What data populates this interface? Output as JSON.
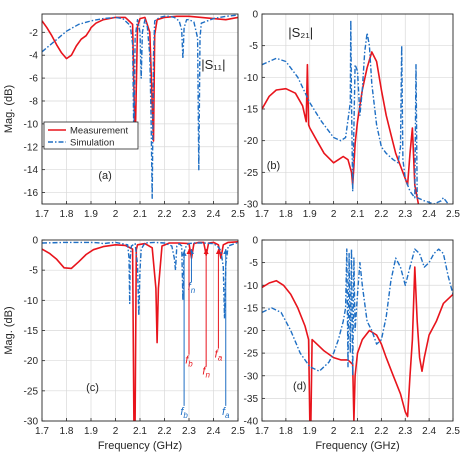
{
  "colors": {
    "measurement": "#e8141c",
    "simulation": "#1f6fc4",
    "grid": "#d9d9d9",
    "axis": "#262626",
    "background": "#ffffff"
  },
  "figure": {
    "shared_xlabel": "Frequency (GHz)"
  },
  "chart_data": [
    {
      "id": "a",
      "type": "line",
      "panel_label": "(a)",
      "annotation": "|S₁₁|",
      "ylabel": "Mag. (dB)",
      "xlabel": "",
      "xlim": [
        1.7,
        2.5
      ],
      "ylim": [
        -17,
        -0.4
      ],
      "xticks": [
        1.7,
        1.8,
        1.9,
        2.0,
        2.1,
        2.2,
        2.3,
        2.4,
        2.5
      ],
      "yticks": [
        -16,
        -14,
        -12,
        -10,
        -8,
        -6,
        -4,
        -2
      ],
      "grid": true,
      "legend": {
        "placement": "bottom-left"
      },
      "series": [
        {
          "name": "Measurement",
          "style": "solid",
          "x": [
            1.7,
            1.72,
            1.74,
            1.76,
            1.78,
            1.8,
            1.82,
            1.84,
            1.86,
            1.88,
            1.895,
            1.9,
            1.92,
            1.95,
            2.0,
            2.04,
            2.07,
            2.08,
            2.09,
            2.1,
            2.12,
            2.14,
            2.155,
            2.16,
            2.17,
            2.2,
            2.25,
            2.3,
            2.35,
            2.4,
            2.45,
            2.5
          ],
          "y": [
            -1.0,
            -1.6,
            -2.3,
            -3.1,
            -3.8,
            -4.3,
            -4.0,
            -3.2,
            -2.6,
            -2.3,
            -1.8,
            -1.6,
            -1.2,
            -0.9,
            -0.7,
            -0.7,
            -1.3,
            -12.0,
            -1.5,
            -0.8,
            -0.7,
            -2.0,
            -11.5,
            -2.2,
            -0.9,
            -0.7,
            -0.6,
            -0.6,
            -0.7,
            -0.8,
            -0.9,
            -0.7
          ]
        },
        {
          "name": "Simulation",
          "style": "dashdot",
          "x": [
            1.7,
            1.75,
            1.8,
            1.85,
            1.9,
            1.95,
            2.0,
            2.03,
            2.06,
            2.07,
            2.075,
            2.08,
            2.09,
            2.1,
            2.105,
            2.11,
            2.12,
            2.13,
            2.14,
            2.145,
            2.15,
            2.155,
            2.16,
            2.18,
            2.2,
            2.22,
            2.24,
            2.26,
            2.27,
            2.275,
            2.28,
            2.29,
            2.3,
            2.32,
            2.335,
            2.34,
            2.345,
            2.35,
            2.4,
            2.45,
            2.5
          ],
          "y": [
            -3.7,
            -2.8,
            -1.9,
            -1.3,
            -1.0,
            -0.8,
            -0.7,
            -0.8,
            -1.4,
            -3.0,
            -11.5,
            -2.5,
            -0.9,
            -2.0,
            -6.0,
            -2.0,
            -0.9,
            -1.5,
            -4.0,
            -9.0,
            -16.5,
            -4.0,
            -1.0,
            -0.7,
            -0.6,
            -0.6,
            -0.7,
            -1.0,
            -1.8,
            -4.3,
            -1.6,
            -0.9,
            -0.9,
            -1.1,
            -2.5,
            -14.0,
            -2.5,
            -1.2,
            -0.8,
            -0.6,
            -0.5
          ]
        }
      ]
    },
    {
      "id": "b",
      "type": "line",
      "panel_label": "(b)",
      "annotation": "|S₂₁|",
      "ylabel": "",
      "xlabel": "",
      "xlim": [
        1.7,
        2.5
      ],
      "ylim": [
        -30,
        0
      ],
      "xticks": [
        1.7,
        1.8,
        1.9,
        2.0,
        2.1,
        2.2,
        2.3,
        2.4,
        2.5
      ],
      "yticks": [
        -30,
        -25,
        -20,
        -15,
        -10,
        -5,
        0
      ],
      "grid": true,
      "legend": null,
      "series": [
        {
          "name": "Measurement",
          "style": "solid",
          "x": [
            1.7,
            1.73,
            1.76,
            1.8,
            1.84,
            1.87,
            1.885,
            1.89,
            1.895,
            1.9,
            1.93,
            1.96,
            2.0,
            2.02,
            2.04,
            2.06,
            2.075,
            2.08,
            2.085,
            2.09,
            2.1,
            2.12,
            2.14,
            2.16,
            2.18,
            2.2,
            2.22,
            2.24,
            2.26,
            2.28,
            2.3,
            2.31,
            2.32,
            2.33,
            2.34,
            2.35,
            2.355
          ],
          "y": [
            -15.0,
            -13.0,
            -12.0,
            -11.8,
            -12.5,
            -14.5,
            -17.0,
            -8.0,
            -17.5,
            -18.0,
            -20.0,
            -22.0,
            -23.5,
            -23.0,
            -22.5,
            -23.0,
            -25.0,
            -27.0,
            -24.0,
            -20.5,
            -17.0,
            -12.0,
            -8.5,
            -6.0,
            -7.5,
            -12.0,
            -16.0,
            -19.0,
            -22.0,
            -24.0,
            -26.0,
            -27.0,
            -22.0,
            -18.0,
            -27.0,
            -29.0,
            -30.0
          ]
        },
        {
          "name": "Simulation",
          "style": "dashdot",
          "x": [
            1.7,
            1.73,
            1.76,
            1.8,
            1.85,
            1.9,
            1.95,
            2.0,
            2.03,
            2.05,
            2.07,
            2.072,
            2.075,
            2.08,
            2.085,
            2.09,
            2.1,
            2.11,
            2.12,
            2.13,
            2.14,
            2.15,
            2.16,
            2.18,
            2.2,
            2.22,
            2.25,
            2.27,
            2.28,
            2.285,
            2.29,
            2.3,
            2.32,
            2.34,
            2.345,
            2.35,
            2.38,
            2.42,
            2.45,
            2.46,
            2.47,
            2.48
          ],
          "y": [
            -8.0,
            -7.5,
            -7.0,
            -7.5,
            -10.0,
            -14.0,
            -17.0,
            -19.5,
            -20.0,
            -19.5,
            -14.0,
            -1.0,
            -14.0,
            -28.0,
            -18.0,
            -8.0,
            -9.0,
            -16.0,
            -12.0,
            -6.0,
            -3.0,
            -5.0,
            -11.0,
            -17.5,
            -21.0,
            -22.0,
            -23.0,
            -23.5,
            -21.0,
            -5.0,
            -23.0,
            -26.0,
            -28.0,
            -29.0,
            -8.0,
            -29.0,
            -29.5,
            -30.0,
            -29.5,
            -29.0,
            -29.5,
            -30.0
          ]
        }
      ]
    },
    {
      "id": "c",
      "type": "line",
      "panel_label": "(c)",
      "annotation": "",
      "ylabel": "Mag. (dB)",
      "xlabel": "Frequency (GHz)",
      "xlim": [
        1.7,
        2.5
      ],
      "ylim": [
        -30,
        0
      ],
      "xticks": [
        1.7,
        1.8,
        1.9,
        2.0,
        2.1,
        2.2,
        2.3,
        2.4,
        2.5
      ],
      "yticks": [
        -30,
        -25,
        -20,
        -15,
        -10,
        -5,
        0
      ],
      "grid": true,
      "legend": null,
      "markers": [
        {
          "label": "f",
          "sub": "b",
          "x": 2.28,
          "color": "#1f6fc4",
          "from": -27.5,
          "to": -1.8,
          "label_y": -29.0
        },
        {
          "label": "f",
          "sub": "n",
          "x": 2.31,
          "color": "#1f6fc4",
          "from": -7.0,
          "to": -1.5,
          "label_y": -8.3
        },
        {
          "label": "f",
          "sub": "b",
          "x": 2.3,
          "color": "#e8141c",
          "from": -19.0,
          "to": -1.5,
          "label_y": -20.5
        },
        {
          "label": "f",
          "sub": "n",
          "x": 2.37,
          "color": "#e8141c",
          "from": -21.0,
          "to": -1.5,
          "label_y": -22.3
        },
        {
          "label": "f",
          "sub": "a",
          "x": 2.42,
          "color": "#e8141c",
          "from": -18.0,
          "to": -1.5,
          "label_y": -19.5
        },
        {
          "label": "f",
          "sub": "a",
          "x": 2.45,
          "color": "#1f6fc4",
          "from": -27.5,
          "to": -1.5,
          "label_y": -29.0
        }
      ],
      "series": [
        {
          "name": "Measurement",
          "style": "solid",
          "x": [
            1.7,
            1.73,
            1.76,
            1.79,
            1.82,
            1.85,
            1.88,
            1.91,
            1.95,
            2.0,
            2.04,
            2.07,
            2.075,
            2.08,
            2.085,
            2.09,
            2.12,
            2.15,
            2.165,
            2.17,
            2.175,
            2.19,
            2.22,
            2.26,
            2.3,
            2.31,
            2.32,
            2.34,
            2.36,
            2.37,
            2.38,
            2.4,
            2.42,
            2.43,
            2.44,
            2.46,
            2.5
          ],
          "y": [
            -1.5,
            -2.2,
            -3.2,
            -4.6,
            -4.7,
            -3.6,
            -2.4,
            -1.6,
            -1.1,
            -0.8,
            -0.9,
            -1.5,
            -30.0,
            -30.0,
            -1.6,
            -0.8,
            -0.6,
            -1.3,
            -8.0,
            -17.0,
            -8.0,
            -1.0,
            -0.5,
            -0.5,
            -0.6,
            -3.0,
            -0.6,
            -0.4,
            -0.4,
            -2.5,
            -0.5,
            -0.4,
            -0.8,
            -3.0,
            -0.8,
            -0.4,
            -0.3
          ]
        },
        {
          "name": "Simulation",
          "style": "dashdot",
          "x": [
            1.7,
            1.8,
            1.9,
            1.94,
            1.95,
            1.97,
            2.0,
            2.05,
            2.055,
            2.058,
            2.06,
            2.065,
            2.08,
            2.09,
            2.095,
            2.1,
            2.105,
            2.12,
            2.16,
            2.2,
            2.23,
            2.24,
            2.245,
            2.25,
            2.26,
            2.27,
            2.275,
            2.28,
            2.29,
            2.3,
            2.32,
            2.36,
            2.4,
            2.42,
            2.43,
            2.44,
            2.445,
            2.45,
            2.46,
            2.5
          ],
          "y": [
            -0.5,
            -0.4,
            -0.4,
            -0.5,
            -0.6,
            -0.5,
            -0.4,
            -0.8,
            -3.0,
            -10.5,
            -3.0,
            -1.0,
            -0.6,
            -4.0,
            -12.5,
            -5.0,
            -1.5,
            -0.5,
            -0.4,
            -0.5,
            -1.0,
            -3.0,
            -5.0,
            -1.0,
            -0.6,
            -1.0,
            -10.0,
            -2.0,
            -0.8,
            -0.6,
            -0.5,
            -0.5,
            -0.6,
            -1.2,
            -1.8,
            -4.5,
            -13.0,
            -4.0,
            -1.0,
            -0.4
          ]
        }
      ]
    },
    {
      "id": "d",
      "type": "line",
      "panel_label": "(d)",
      "annotation": "",
      "ylabel": "",
      "xlabel": "Frequency (GHz)",
      "xlim": [
        1.7,
        2.5
      ],
      "ylim": [
        -40,
        0
      ],
      "xticks": [
        1.7,
        1.8,
        1.9,
        2.0,
        2.1,
        2.2,
        2.3,
        2.4,
        2.5
      ],
      "yticks": [
        -40,
        -35,
        -30,
        -25,
        -20,
        -15,
        -10,
        -5,
        0
      ],
      "grid": true,
      "legend": null,
      "series": [
        {
          "name": "Measurement",
          "style": "solid",
          "x": [
            1.7,
            1.73,
            1.76,
            1.79,
            1.82,
            1.85,
            1.88,
            1.895,
            1.9,
            1.905,
            1.91,
            1.93,
            1.96,
            2.0,
            2.03,
            2.06,
            2.08,
            2.085,
            2.09,
            2.1,
            2.12,
            2.15,
            2.18,
            2.2,
            2.22,
            2.25,
            2.28,
            2.3,
            2.31,
            2.32,
            2.33,
            2.34,
            2.35,
            2.36,
            2.37,
            2.38,
            2.4,
            2.43,
            2.46,
            2.5
          ],
          "y": [
            -10.5,
            -9.5,
            -9.0,
            -10.0,
            -12.0,
            -15.0,
            -19.0,
            -22.0,
            -40.0,
            -40.0,
            -22.0,
            -23.0,
            -24.5,
            -26.0,
            -26.5,
            -26.5,
            -27.5,
            -40.0,
            -30.0,
            -25.0,
            -22.0,
            -20.0,
            -21.0,
            -23.0,
            -26.0,
            -30.0,
            -34.0,
            -38.0,
            -39.0,
            -30.0,
            -22.0,
            -6.0,
            -18.0,
            -26.0,
            -29.0,
            -26.0,
            -21.0,
            -18.0,
            -14.0,
            -12.0
          ]
        },
        {
          "name": "Simulation",
          "style": "dashdot",
          "x": [
            1.7,
            1.74,
            1.78,
            1.82,
            1.86,
            1.9,
            1.94,
            1.98,
            2.0,
            2.02,
            2.04,
            2.05,
            2.055,
            2.06,
            2.065,
            2.07,
            2.075,
            2.08,
            2.085,
            2.09,
            2.1,
            2.11,
            2.12,
            2.14,
            2.16,
            2.18,
            2.2,
            2.22,
            2.24,
            2.26,
            2.28,
            2.3,
            2.32,
            2.34,
            2.36,
            2.38,
            2.4,
            2.42,
            2.44,
            2.46,
            2.48,
            2.5
          ],
          "y": [
            -16.0,
            -15.0,
            -16.0,
            -20.0,
            -25.0,
            -28.0,
            -29.0,
            -27.0,
            -25.0,
            -22.0,
            -18.0,
            -15.0,
            -2.0,
            -28.0,
            -3.0,
            -25.0,
            -2.0,
            -30.0,
            -4.0,
            -20.0,
            -12.0,
            -5.0,
            -10.0,
            -18.0,
            -20.0,
            -23.0,
            -22.0,
            -17.0,
            -9.0,
            -4.0,
            -6.0,
            -10.0,
            -6.0,
            -2.0,
            -3.0,
            -6.0,
            -5.0,
            -3.0,
            -2.0,
            -3.0,
            -8.0,
            -12.0
          ]
        }
      ]
    }
  ]
}
